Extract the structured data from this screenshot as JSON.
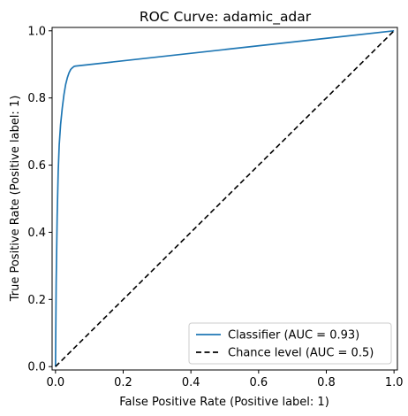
{
  "chart_data": {
    "type": "line",
    "title": "ROC Curve: adamic_adar",
    "xlabel": "False Positive Rate (Positive label: 1)",
    "ylabel": "True Positive Rate (Positive label: 1)",
    "xlim": [
      -0.01,
      1.01
    ],
    "ylim": [
      -0.01,
      1.01
    ],
    "xticks": [
      0.0,
      0.2,
      0.4,
      0.6,
      0.8,
      1.0
    ],
    "yticks": [
      0.0,
      0.2,
      0.4,
      0.6,
      0.8,
      1.0
    ],
    "xtick_labels": [
      "0.0",
      "0.2",
      "0.4",
      "0.6",
      "0.8",
      "1.0"
    ],
    "ytick_labels": [
      "0.0",
      "0.2",
      "0.4",
      "0.6",
      "0.8",
      "1.0"
    ],
    "grid": false,
    "legend_placement": "lower-right",
    "series": [
      {
        "name": "Classifier (AUC = 0.93)",
        "color": "#1f77b4",
        "style": "solid",
        "x": [
          0.0,
          0.002,
          0.005,
          0.008,
          0.011,
          0.015,
          0.02,
          0.025,
          0.03,
          0.035,
          0.04,
          0.045,
          0.05,
          0.055,
          0.06,
          1.0
        ],
        "y": [
          0.0,
          0.25,
          0.45,
          0.58,
          0.66,
          0.72,
          0.77,
          0.81,
          0.84,
          0.86,
          0.875,
          0.885,
          0.89,
          0.894,
          0.895,
          1.0
        ]
      },
      {
        "name": "Chance level (AUC = 0.5)",
        "color": "#000000",
        "style": "dashed",
        "x": [
          0.0,
          1.0
        ],
        "y": [
          0.0,
          1.0
        ]
      }
    ]
  }
}
